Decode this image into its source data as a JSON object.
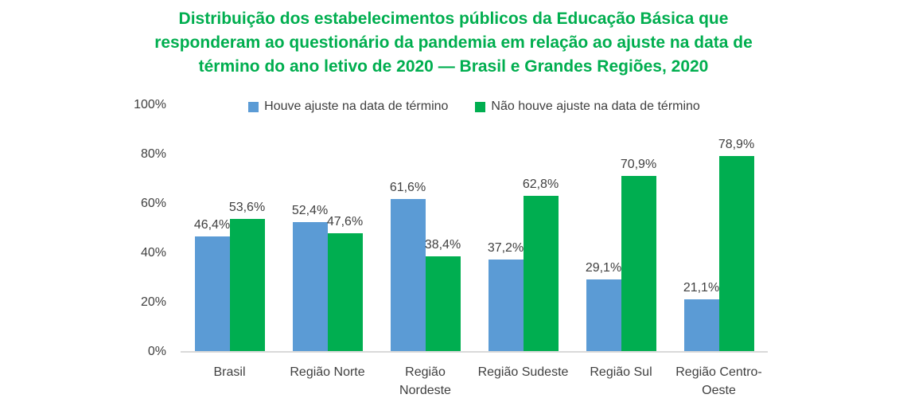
{
  "title": {
    "lines": [
      "Distribuição dos estabelecimentos públicos da Educação Básica que",
      "responderam ao questionário da pandemia em relação ao ajuste na data de",
      "término do ano letivo de 2020 — Brasil e Grandes Regiões, 2020"
    ],
    "color": "#00ae4f"
  },
  "chart_data": {
    "type": "bar",
    "categories": [
      "Brasil",
      "Região Norte",
      "Região Nordeste",
      "Região Sudeste",
      "Região Sul",
      "Região Centro-Oeste"
    ],
    "category_lines": [
      [
        "Brasil"
      ],
      [
        "Região Norte"
      ],
      [
        "Região",
        "Nordeste"
      ],
      [
        "Região Sudeste"
      ],
      [
        "Região Sul"
      ],
      [
        "Região Centro-",
        "Oeste"
      ]
    ],
    "series": [
      {
        "name": "Houve ajuste na data de término",
        "color": "#5b9bd5",
        "values": [
          46.4,
          52.4,
          61.6,
          37.2,
          29.1,
          21.1
        ],
        "labels": [
          "46,4%",
          "52,4%",
          "61,6%",
          "37,2%",
          "29,1%",
          "21,1%"
        ]
      },
      {
        "name": "Não houve ajuste na data de término",
        "color": "#00ae50",
        "values": [
          53.6,
          47.6,
          38.4,
          62.8,
          70.9,
          78.9
        ],
        "labels": [
          "53,6%",
          "47,6%",
          "38,4%",
          "62,8%",
          "70,9%",
          "78,9%"
        ]
      }
    ],
    "xlabel": "",
    "ylabel": "",
    "ylim": [
      0,
      100
    ],
    "y_ticks": [
      "0%",
      "20%",
      "40%",
      "60%",
      "80%",
      "100%"
    ],
    "grid": false,
    "legend_position": "top",
    "axis_line_color": "#d9d9d9",
    "text_color": "#3f3f3f"
  }
}
